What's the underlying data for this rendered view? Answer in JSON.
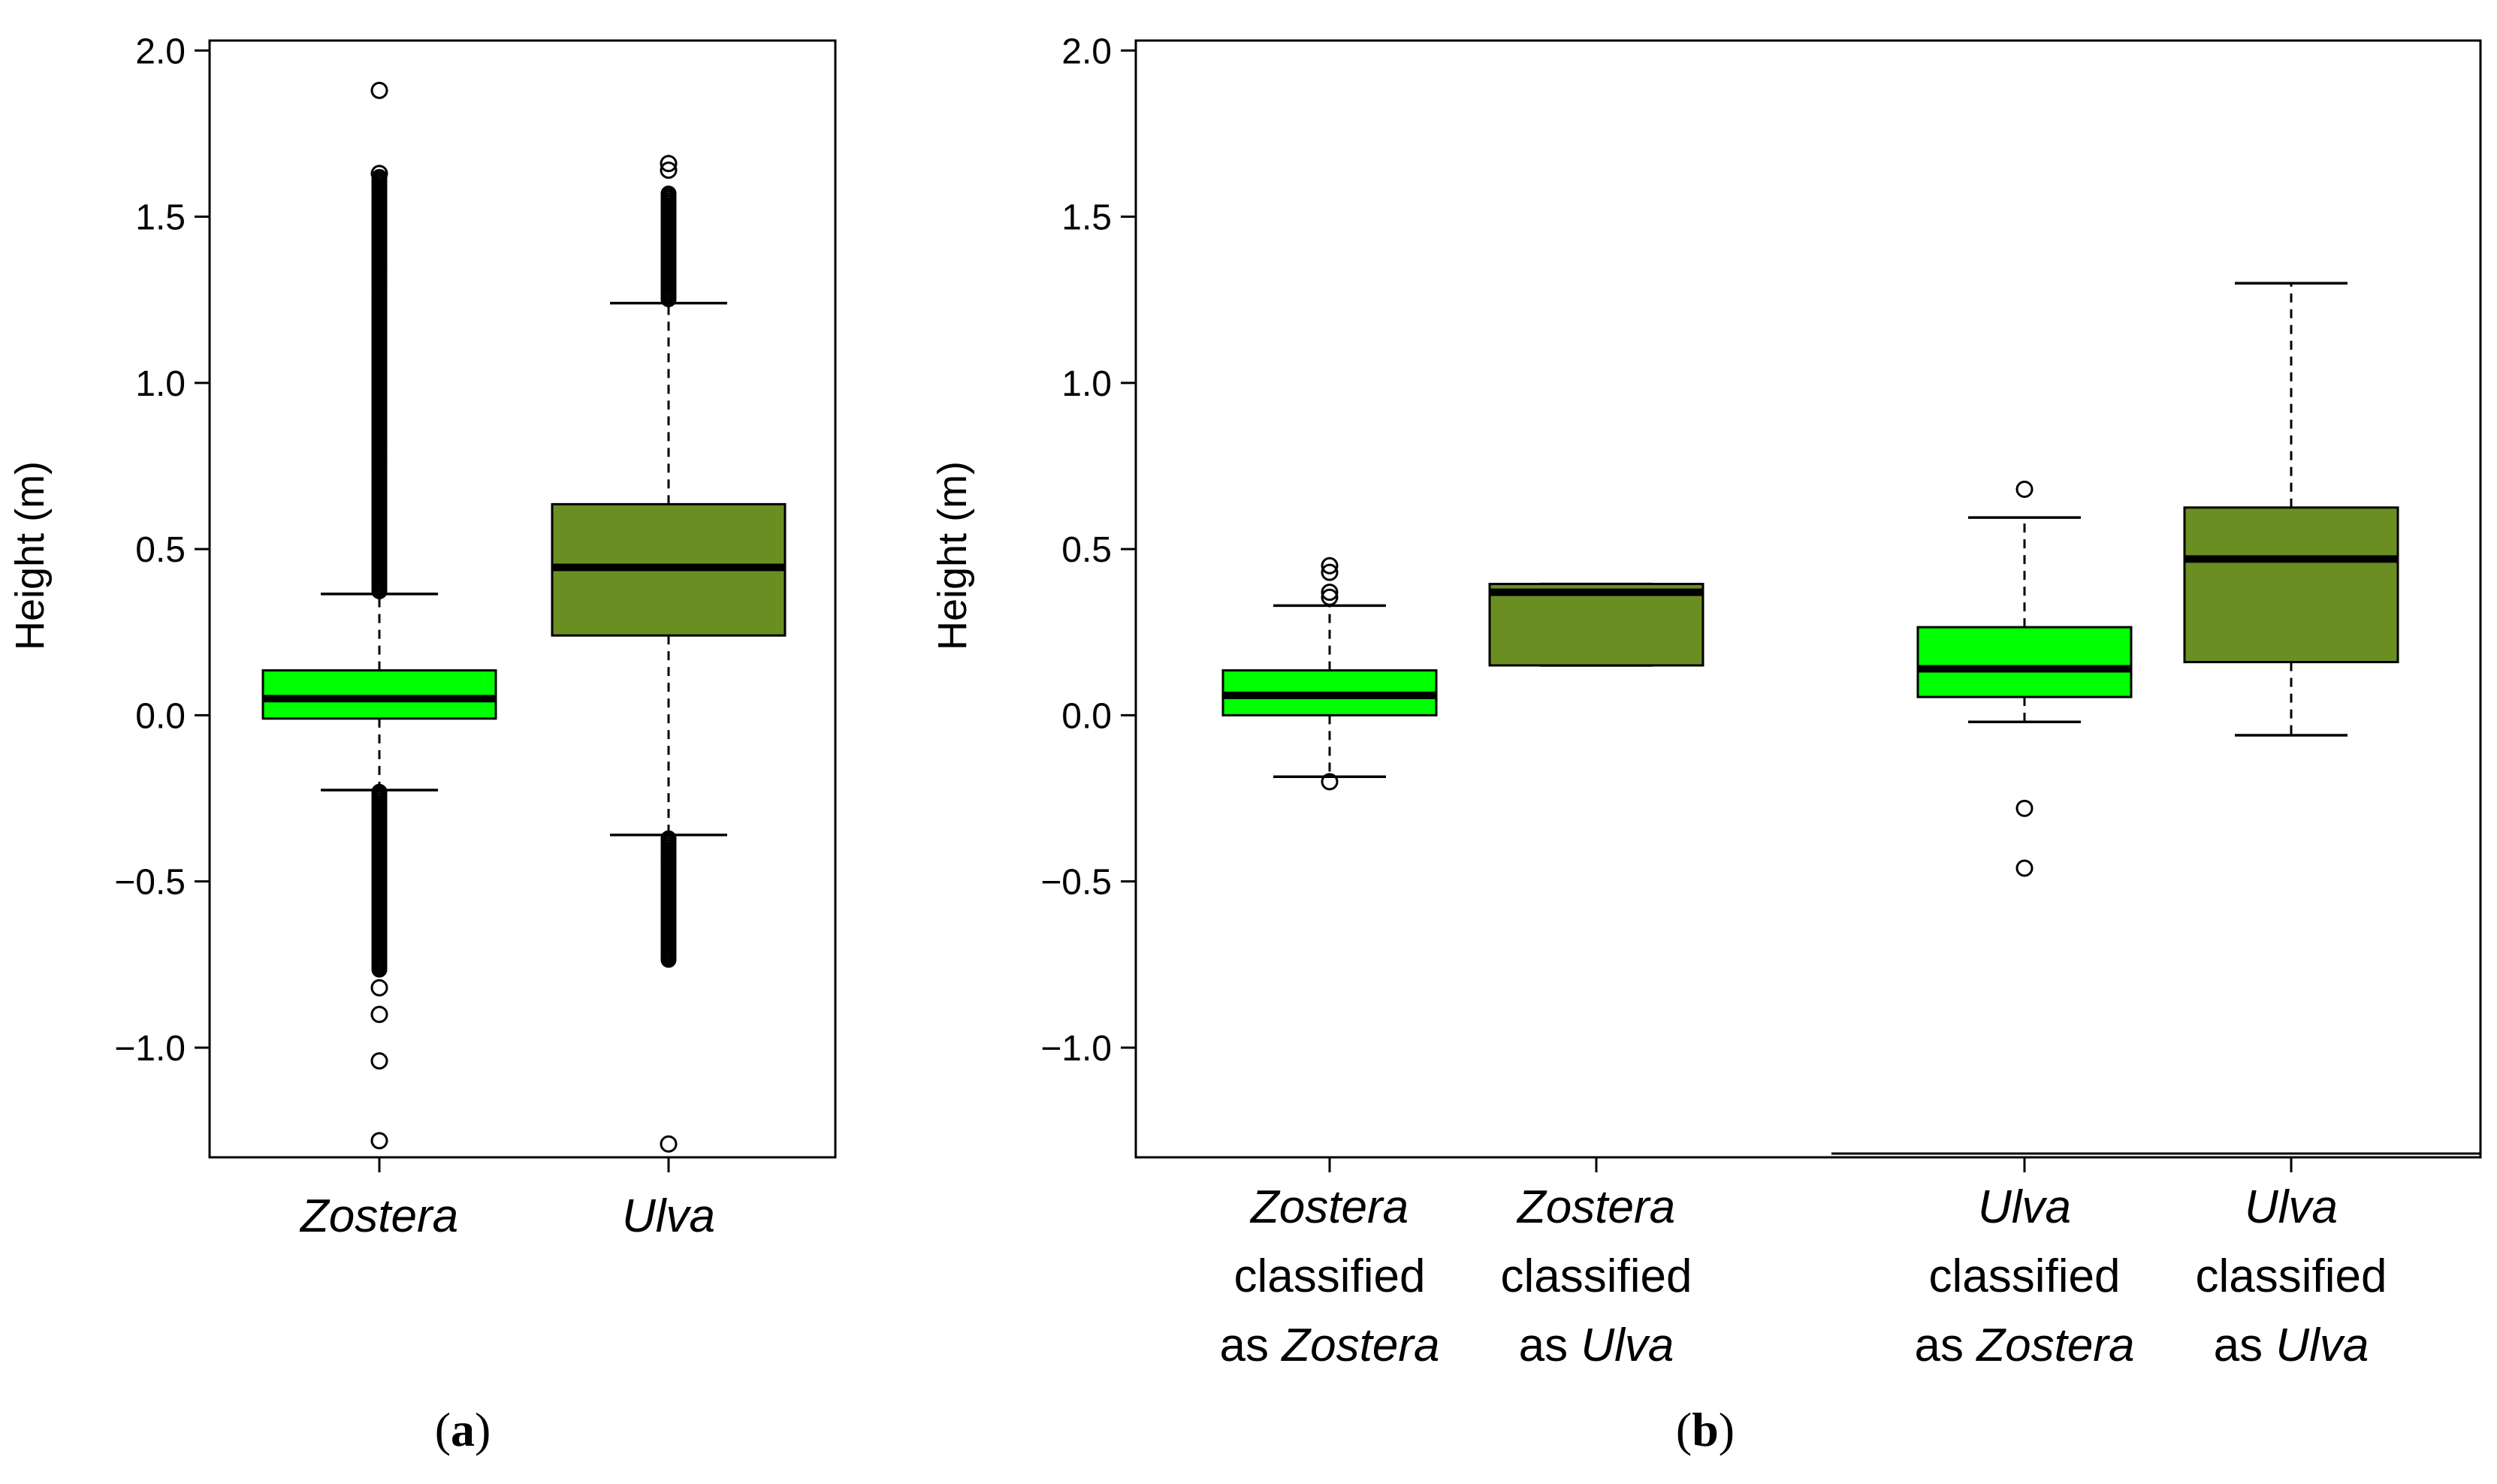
{
  "colors": {
    "bright_green": "#00ff00",
    "olive_green": "#6b8e23",
    "axis": "#000000"
  },
  "chart_data": [
    {
      "type": "box",
      "panel_label": "(a)",
      "title": "",
      "ylabel": "Height (m)",
      "xlabel": "",
      "ylim": [
        -1.33,
        2.03
      ],
      "yticks": [
        -1.0,
        -0.5,
        0.0,
        0.5,
        1.0,
        1.5,
        2.0
      ],
      "ytick_labels": [
        "−1.0",
        "−0.5",
        "0.0",
        "0.5",
        "1.0",
        "1.5",
        "2.0"
      ],
      "categories": [
        {
          "label": "Zostera",
          "label_italic": true,
          "color": "#00ff00",
          "q1": -0.01,
          "median": 0.05,
          "q3": 0.135,
          "whisker_low": -0.225,
          "whisker_high": 0.365,
          "dense_outliers": [
            [
              -0.77,
              -0.23
            ],
            [
              0.37,
              1.62
            ]
          ],
          "outliers": [
            1.88,
            1.63,
            -0.82,
            -0.9,
            -1.04,
            -1.28
          ]
        },
        {
          "label": "Ulva",
          "label_italic": true,
          "color": "#6b8e23",
          "q1": 0.24,
          "median": 0.445,
          "q3": 0.635,
          "whisker_low": -0.36,
          "whisker_high": 1.24,
          "dense_outliers": [
            [
              -0.74,
              -0.37
            ],
            [
              1.25,
              1.57
            ]
          ],
          "outliers": [
            1.66,
            1.64,
            -1.29
          ]
        }
      ]
    },
    {
      "type": "box",
      "panel_label": "(b)",
      "title": "",
      "ylabel": "Height (m)",
      "xlabel": "",
      "ylim": [
        -1.33,
        2.03
      ],
      "yticks": [
        -1.0,
        -0.5,
        0.0,
        0.5,
        1.0,
        1.5,
        2.0
      ],
      "ytick_labels": [
        "−1.0",
        "−0.5",
        "0.0",
        "0.5",
        "1.0",
        "1.5",
        "2.0"
      ],
      "categories": [
        {
          "label_lines": [
            [
              "Zostera"
            ],
            [
              "classified"
            ],
            [
              "as ",
              "Zostera"
            ]
          ],
          "italic_words": [
            "Zostera"
          ],
          "color": "#00ff00",
          "q1": 0.0,
          "median": 0.06,
          "q3": 0.135,
          "whisker_low": -0.185,
          "whisker_high": 0.33,
          "outliers": [
            0.45,
            0.43,
            0.37,
            0.355,
            -0.2
          ]
        },
        {
          "label_lines": [
            [
              "Zostera"
            ],
            [
              "classified"
            ],
            [
              "as ",
              "Ulva"
            ]
          ],
          "italic_words": [
            "Zostera",
            "Ulva"
          ],
          "color": "#6b8e23",
          "q1": 0.15,
          "median": 0.37,
          "q3": 0.395,
          "whisker_low": 0.15,
          "whisker_high": 0.395,
          "outliers": []
        },
        {
          "label_lines": [
            [
              "Ulva"
            ],
            [
              "classified"
            ],
            [
              "as ",
              "Zostera"
            ]
          ],
          "italic_words": [
            "Ulva",
            "Zostera"
          ],
          "color": "#00ff00",
          "q1": 0.055,
          "median": 0.14,
          "q3": 0.265,
          "whisker_low": -0.02,
          "whisker_high": 0.595,
          "outliers": [
            0.68,
            -0.28,
            -0.46
          ]
        },
        {
          "label_lines": [
            [
              "Ulva"
            ],
            [
              "classified"
            ],
            [
              "as ",
              "Ulva"
            ]
          ],
          "italic_words": [
            "Ulva"
          ],
          "color": "#6b8e23",
          "q1": 0.16,
          "median": 0.47,
          "q3": 0.625,
          "whisker_low": -0.06,
          "whisker_high": 1.3,
          "outliers": []
        }
      ]
    }
  ]
}
